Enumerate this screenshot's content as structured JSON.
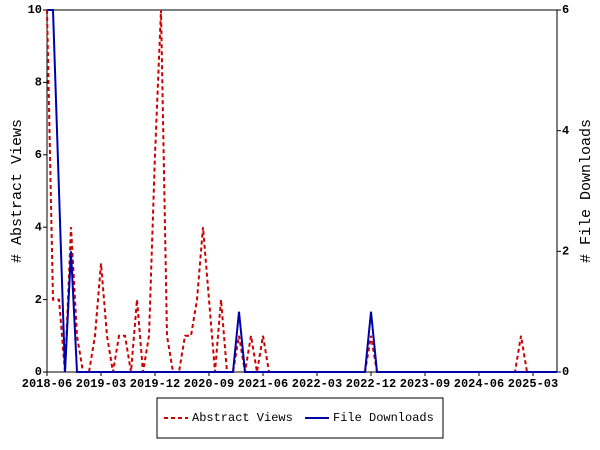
{
  "chart_data": {
    "type": "line",
    "categories": [
      "2018-06",
      null,
      null,
      null,
      null,
      null,
      null,
      null,
      null,
      "2019-03",
      null,
      null,
      null,
      null,
      null,
      null,
      null,
      null,
      "2019-12",
      null,
      null,
      null,
      null,
      null,
      null,
      null,
      null,
      "2020-09",
      null,
      null,
      null,
      null,
      null,
      null,
      null,
      null,
      "2021-06",
      null,
      null,
      null,
      null,
      null,
      null,
      null,
      null,
      "2022-03",
      null,
      null,
      null,
      null,
      null,
      null,
      null,
      null,
      "2022-12",
      null,
      null,
      null,
      null,
      null,
      null,
      null,
      null,
      "2023-09",
      null,
      null,
      null,
      null,
      null,
      null,
      null,
      null,
      "2024-06",
      null,
      null,
      null,
      null,
      null,
      null,
      null,
      null,
      "2025-03",
      null,
      null,
      null,
      null
    ],
    "series": [
      {
        "name": "Abstract Views",
        "color": "#cc0000",
        "dash": true,
        "values": [
          10,
          2,
          2,
          0,
          4,
          1,
          0,
          0,
          1,
          3,
          1,
          0,
          1,
          1,
          0,
          2,
          0,
          1,
          6,
          10,
          1,
          0,
          0,
          1,
          1,
          2,
          4,
          2,
          0,
          2,
          0,
          0,
          1,
          0,
          1,
          0,
          1,
          0,
          0,
          0,
          0,
          0,
          0,
          0,
          0,
          0,
          0,
          0,
          0,
          0,
          0,
          0,
          0,
          0,
          1,
          0,
          0,
          0,
          0,
          0,
          0,
          0,
          0,
          0,
          0,
          0,
          0,
          0,
          0,
          0,
          0,
          0,
          0,
          0,
          0,
          0,
          0,
          0,
          0,
          1,
          0,
          0,
          0,
          0,
          0,
          0
        ]
      },
      {
        "name": "File Downloads",
        "color": "#0000aa",
        "dash": false,
        "axis": "y2",
        "values": [
          6,
          6,
          3,
          0,
          2,
          0,
          0,
          0,
          0,
          0,
          0,
          0,
          0,
          0,
          0,
          0,
          0,
          0,
          0,
          0,
          0,
          0,
          0,
          0,
          0,
          0,
          0,
          0,
          0,
          0,
          0,
          0,
          1,
          0,
          0,
          0,
          0,
          0,
          0,
          0,
          0,
          0,
          0,
          0,
          0,
          0,
          0,
          0,
          0,
          0,
          0,
          0,
          0,
          0,
          1,
          0,
          0,
          0,
          0,
          0,
          0,
          0,
          0,
          0,
          0,
          0,
          0,
          0,
          0,
          0,
          0,
          0,
          0,
          0,
          0,
          0,
          0,
          0,
          0,
          0,
          0,
          0,
          0,
          0,
          0,
          0
        ]
      }
    ],
    "y_label": "# Abstract Views",
    "y2_label": "# File Downloads",
    "ylim": [
      0,
      10
    ],
    "yticks": [
      0,
      2,
      4,
      6,
      8,
      10
    ],
    "y2lim": [
      0,
      6
    ],
    "y2ticks": [
      0,
      2,
      4,
      6
    ],
    "legend": "bottom"
  }
}
